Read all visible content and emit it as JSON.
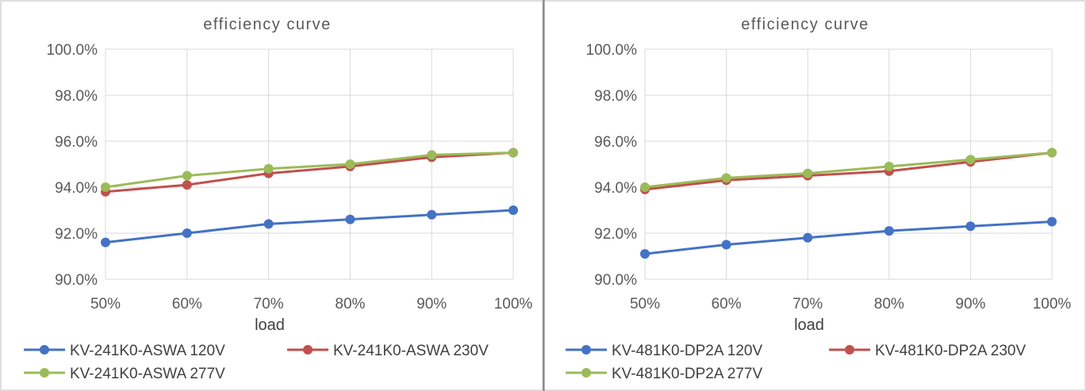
{
  "chart_data": [
    {
      "type": "line",
      "title": "efficiency curve",
      "xlabel": "load",
      "ylabel": "",
      "categories": [
        "50%",
        "60%",
        "70%",
        "80%",
        "90%",
        "100%"
      ],
      "ylim": [
        90.0,
        100.0
      ],
      "yticks": [
        "90.0%",
        "92.0%",
        "94.0%",
        "96.0%",
        "98.0%",
        "100.0%"
      ],
      "grid": true,
      "legend_position": "bottom",
      "series": [
        {
          "name": "KV-241K0-ASWA 120V",
          "color": "#4472C4",
          "values": [
            91.6,
            92.0,
            92.4,
            92.6,
            92.8,
            93.0
          ]
        },
        {
          "name": "KV-241K0-ASWA 230V",
          "color": "#C0504D",
          "values": [
            93.8,
            94.1,
            94.6,
            94.9,
            95.3,
            95.5
          ]
        },
        {
          "name": "KV-241K0-ASWA 277V",
          "color": "#9BBB59",
          "values": [
            94.0,
            94.5,
            94.8,
            95.0,
            95.4,
            95.5
          ]
        }
      ]
    },
    {
      "type": "line",
      "title": "efficiency curve",
      "xlabel": "load",
      "ylabel": "",
      "categories": [
        "50%",
        "60%",
        "70%",
        "80%",
        "90%",
        "100%"
      ],
      "ylim": [
        90.0,
        100.0
      ],
      "yticks": [
        "90.0%",
        "92.0%",
        "94.0%",
        "96.0%",
        "98.0%",
        "100.0%"
      ],
      "grid": true,
      "legend_position": "bottom",
      "series": [
        {
          "name": "KV-481K0-DP2A 120V",
          "color": "#4472C4",
          "values": [
            91.1,
            91.5,
            91.8,
            92.1,
            92.3,
            92.5
          ]
        },
        {
          "name": "KV-481K0-DP2A 230V",
          "color": "#C0504D",
          "values": [
            93.9,
            94.3,
            94.5,
            94.7,
            95.1,
            95.5
          ]
        },
        {
          "name": "KV-481K0-DP2A 277V",
          "color": "#9BBB59",
          "values": [
            94.0,
            94.4,
            94.6,
            94.9,
            95.2,
            95.5
          ]
        }
      ]
    }
  ]
}
